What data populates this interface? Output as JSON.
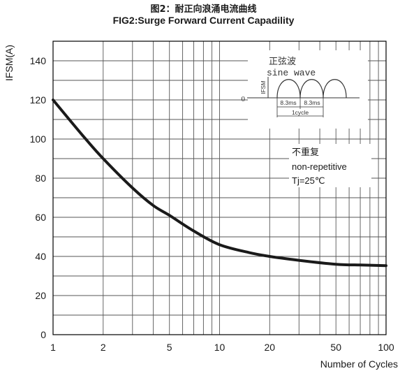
{
  "chart_data": {
    "type": "line",
    "title": "图2：耐正向浪涌电流曲线",
    "subtitle": "FIG2:Surge Forward Current Capadility",
    "ylabel": "IFSM(A)",
    "xlabel": "Number of Cycles",
    "x_scale": "log",
    "xlim": [
      1,
      100
    ],
    "ylim": [
      0,
      150
    ],
    "x_ticks": [
      1,
      2,
      5,
      10,
      20,
      50,
      100
    ],
    "x_tick_labels": [
      "1",
      "2",
      "5",
      "10",
      "20",
      "50",
      "100"
    ],
    "y_ticks": [
      0,
      20,
      40,
      60,
      80,
      100,
      120,
      140
    ],
    "y_tick_labels": [
      "0",
      "20",
      "40",
      "60",
      "80",
      "100",
      "120",
      "140"
    ],
    "grid": true,
    "series": [
      {
        "x": [
          1,
          1.5,
          2,
          3,
          4,
          5,
          7,
          10,
          15,
          20,
          30,
          50,
          70,
          100
        ],
        "y": [
          120,
          102,
          90,
          75,
          66,
          61,
          53,
          46,
          42,
          40,
          38,
          36,
          35.6,
          35.3
        ]
      }
    ],
    "annotations": {
      "inset_label_cn": "正弦波",
      "inset_label_en": "sine wave",
      "inset_axis": "IFSM",
      "inset_zero": "0",
      "inset_period1": "8.3ms",
      "inset_period2": "8.3ms",
      "inset_cycle": "1cycle",
      "cond_cn": "不重复",
      "cond_en": "non-repetitive",
      "cond_tj": "Tj=25℃"
    }
  }
}
